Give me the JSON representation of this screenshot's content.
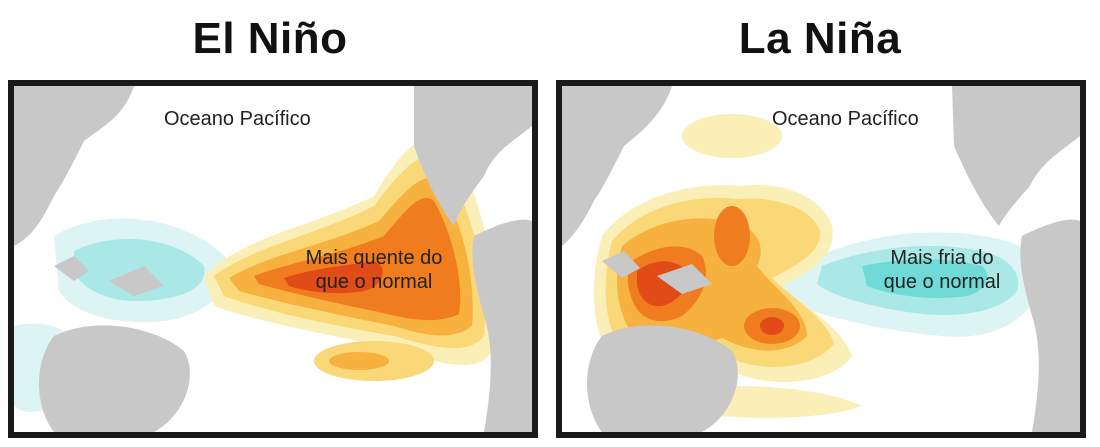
{
  "left_map": {
    "title": "El Niño",
    "ocean_label": "Oceano Pacífico",
    "anomaly_label_line1": "Mais quente do",
    "anomaly_label_line2": "que o normal"
  },
  "right_map": {
    "title": "La Niña",
    "ocean_label": "Oceano Pacífico",
    "anomaly_label_line1": "Mais fria do",
    "anomaly_label_line2": "que o normal"
  },
  "colors": {
    "land": "#c8c8c8",
    "cool_light": "#dcf4f4",
    "cool_mid": "#a9e8e6",
    "cool_strong": "#6fdad6",
    "warm_pale": "#fbefb8",
    "warm_light": "#fbd877",
    "warm_mid": "#f7b13f",
    "warm_strong": "#ef7d1f",
    "warm_core": "#e14b18"
  }
}
